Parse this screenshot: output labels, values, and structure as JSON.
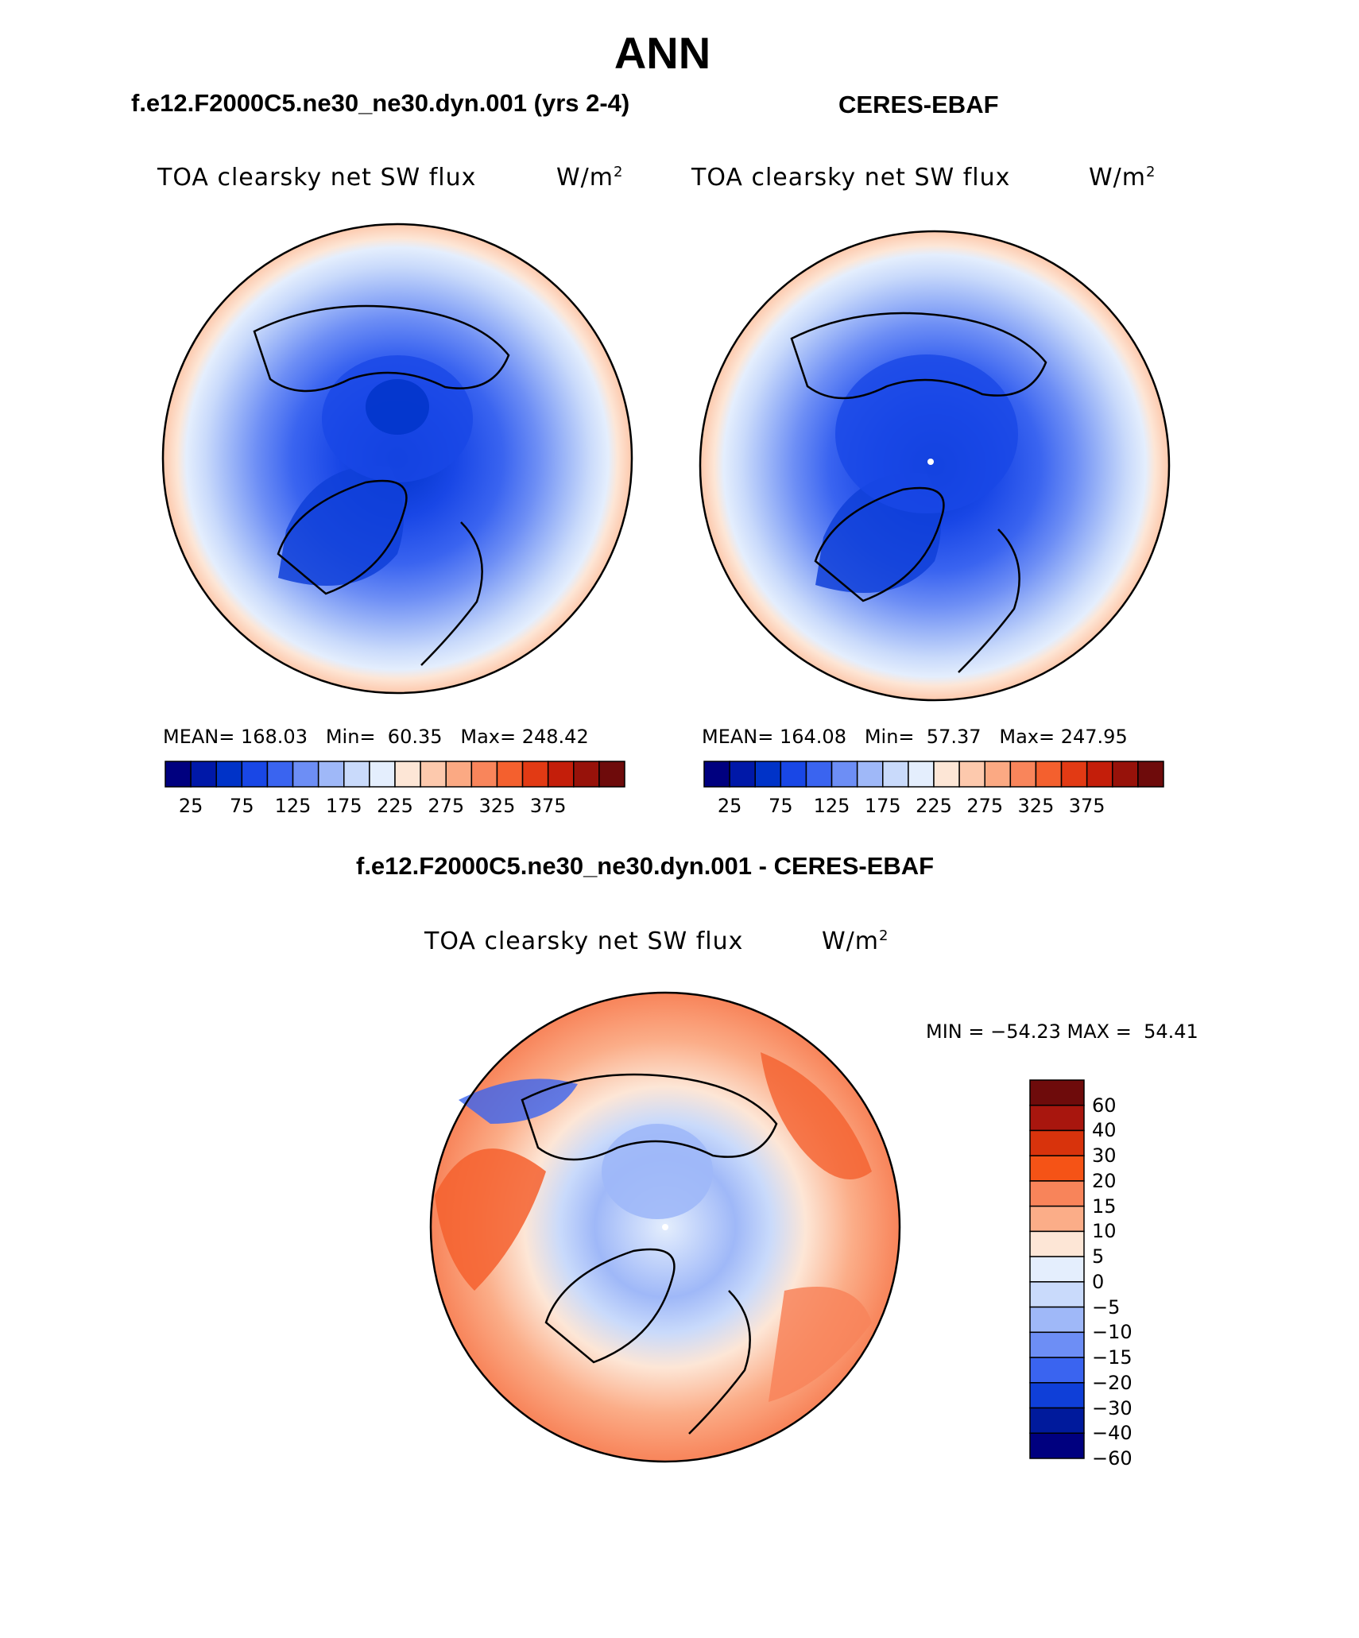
{
  "figure": {
    "season": "ANN",
    "variable": "TOA clearsky net SW flux",
    "units_prefix": "W/m",
    "units_exp": "2"
  },
  "panels": [
    {
      "title": "f.e12.F2000C5.ne30_ne30.dyn.001 (yrs 2-4)",
      "stats": "MEAN= 168.03   Min=  60.35   Max= 248.42"
    },
    {
      "title": "CERES-EBAF",
      "stats": "MEAN= 164.08   Min=  57.37   Max= 247.95"
    },
    {
      "title": "f.e12.F2000C5.ne30_ne30.dyn.001 - CERES-EBAF",
      "stats": "MIN = −54.23 MAX =  54.41"
    }
  ],
  "colorbar_abs": {
    "colors": [
      "#00007f",
      "#0018a8",
      "#0033c8",
      "#1947e6",
      "#3a64f0",
      "#6d8ef5",
      "#9fb8f8",
      "#c9dafb",
      "#e4eefd",
      "#fde6d6",
      "#fdc9ad",
      "#fba983",
      "#f9855b",
      "#f4602e",
      "#e23a14",
      "#c41e0a",
      "#97120a",
      "#6e0b0b"
    ],
    "ticks": [
      "25",
      "75",
      "125",
      "175",
      "225",
      "275",
      "325",
      "375"
    ]
  },
  "colorbar_diff": {
    "colors": [
      "#6e0b0b",
      "#a8160e",
      "#d8330c",
      "#f55316",
      "#f8845a",
      "#fbad88",
      "#fde6d6",
      "#e4eefd",
      "#c9dafb",
      "#9fb8f8",
      "#6d8ef5",
      "#3a64f0",
      "#0f3fd8",
      "#001a9c",
      "#00007f"
    ],
    "ticks": [
      "60",
      "40",
      "30",
      "20",
      "15",
      "10",
      "5",
      "0",
      "−5",
      "−10",
      "−15",
      "−20",
      "−30",
      "−40",
      "−60"
    ]
  },
  "chart_data": [
    {
      "type": "heatmap",
      "projection": "north polar stereographic",
      "title": "f.e12.F2000C5.ne30_ne30.dyn.001 (yrs 2-4)",
      "field": "TOA clearsky net SW flux",
      "units": "W/m2",
      "mean": 168.03,
      "min": 60.35,
      "max": 248.42,
      "levels": [
        25,
        50,
        75,
        100,
        125,
        150,
        175,
        200,
        225,
        250,
        275,
        300,
        325,
        350,
        375
      ]
    },
    {
      "type": "heatmap",
      "projection": "north polar stereographic",
      "title": "CERES-EBAF",
      "field": "TOA clearsky net SW flux",
      "units": "W/m2",
      "mean": 164.08,
      "min": 57.37,
      "max": 247.95,
      "levels": [
        25,
        50,
        75,
        100,
        125,
        150,
        175,
        200,
        225,
        250,
        275,
        300,
        325,
        350,
        375
      ]
    },
    {
      "type": "heatmap",
      "projection": "north polar stereographic",
      "title": "f.e12.F2000C5.ne30_ne30.dyn.001 - CERES-EBAF",
      "field": "TOA clearsky net SW flux",
      "units": "W/m2",
      "min": -54.23,
      "max": 54.41,
      "levels": [
        60,
        40,
        30,
        20,
        15,
        10,
        5,
        0,
        -5,
        -10,
        -15,
        -20,
        -30,
        -40,
        -60
      ]
    }
  ]
}
